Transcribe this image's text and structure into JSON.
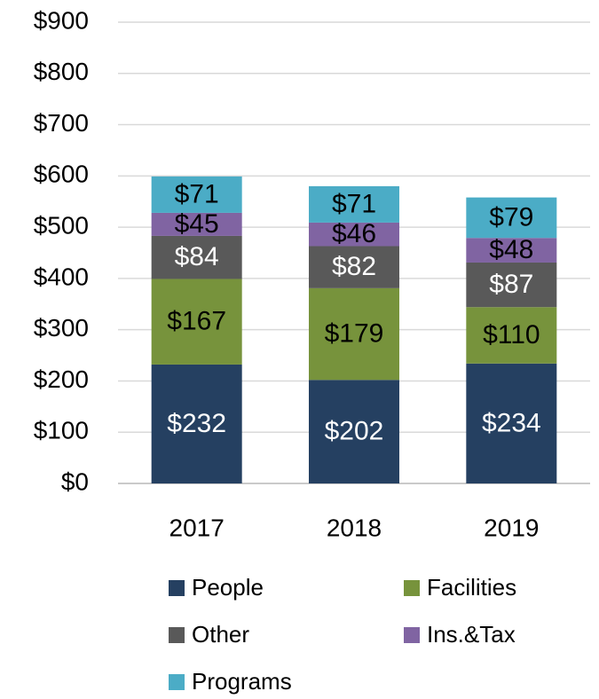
{
  "chart_data": {
    "type": "stacked_bar",
    "categories": [
      "2017",
      "2018",
      "2019"
    ],
    "series": [
      {
        "name": "People",
        "color": "#254061",
        "values": [
          232,
          202,
          234
        ],
        "value_labels": [
          "$232",
          "$202",
          "$234"
        ]
      },
      {
        "name": "Facilities",
        "color": "#77933c",
        "values": [
          167,
          179,
          110
        ],
        "value_labels": [
          "$167",
          "$179",
          "$110"
        ]
      },
      {
        "name": "Other",
        "color": "#595959",
        "values": [
          84,
          82,
          87
        ],
        "value_labels": [
          "$84",
          "$82",
          "$87"
        ]
      },
      {
        "name": "Ins.&Tax",
        "color": "#8064a2",
        "values": [
          45,
          46,
          48
        ],
        "value_labels": [
          "$45",
          "$46",
          "$48"
        ]
      },
      {
        "name": "Programs",
        "color": "#4bacc6",
        "values": [
          71,
          71,
          79
        ],
        "value_labels": [
          "$71",
          "$71",
          "$79"
        ]
      }
    ],
    "ylim": [
      0,
      900
    ],
    "yticks": [
      {
        "value": 0,
        "label": "$0"
      },
      {
        "value": 100,
        "label": "$100"
      },
      {
        "value": 200,
        "label": "$200"
      },
      {
        "value": 300,
        "label": "$300"
      },
      {
        "value": 400,
        "label": "$400"
      },
      {
        "value": 500,
        "label": "$500"
      },
      {
        "value": 600,
        "label": "$600"
      },
      {
        "value": 700,
        "label": "$700"
      },
      {
        "value": 800,
        "label": "$800"
      },
      {
        "value": 900,
        "label": "$900"
      }
    ],
    "grid": true,
    "legend": "bottom"
  }
}
